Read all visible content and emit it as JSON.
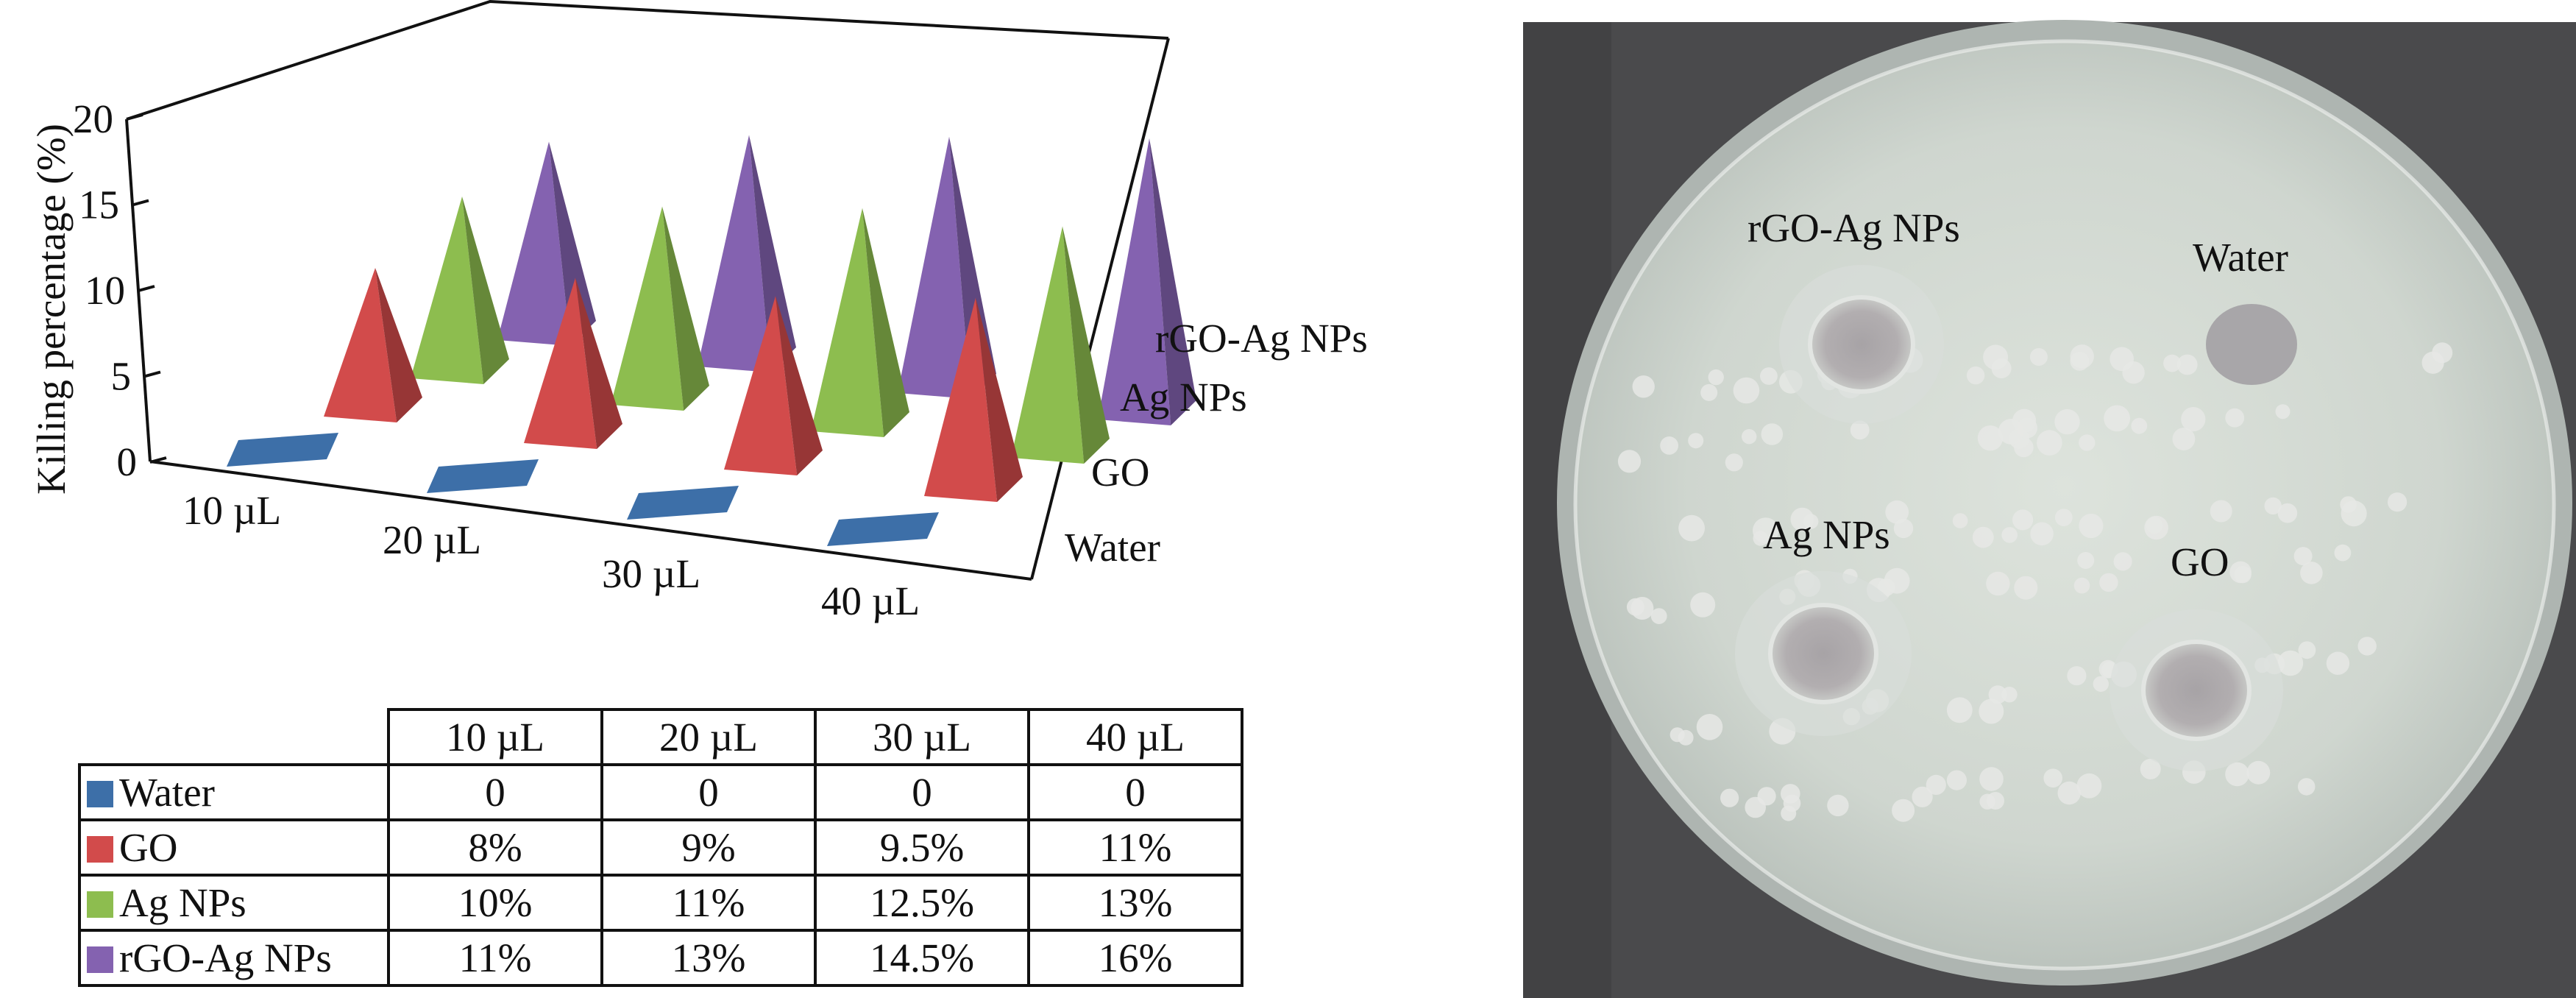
{
  "chart_data": {
    "type": "bar",
    "style": "3d-pyramid",
    "ylabel": "Killing percentage (%)",
    "xlabel": "",
    "ylim": [
      0,
      20
    ],
    "yticks": [
      0,
      5,
      10,
      15,
      20
    ],
    "categories": [
      "10 µL",
      "20 µL",
      "30 µL",
      "40 µL"
    ],
    "series": [
      {
        "name": "Water",
        "color": "#3d6fa8",
        "values": [
          0,
          0,
          0,
          0
        ]
      },
      {
        "name": "GO",
        "color": "#d24b4b",
        "values": [
          8,
          9,
          9.5,
          11
        ]
      },
      {
        "name": "Ag NPs",
        "color": "#8dbd4f",
        "values": [
          10,
          11,
          12.5,
          13
        ]
      },
      {
        "name": "rGO-Ag NPs",
        "color": "#8462b0",
        "values": [
          11,
          13,
          14.5,
          16
        ]
      }
    ],
    "depth_axis_labels": [
      "Water",
      "GO",
      "Ag NPs",
      "rGO-Ag NPs"
    ],
    "grid": false
  },
  "table": {
    "headers": [
      "10 µL",
      "20 µL",
      "30 µL",
      "40 µL"
    ],
    "rows": [
      {
        "label": "Water",
        "color": "#3d6fa8",
        "values": [
          "0",
          "0",
          "0",
          "0"
        ]
      },
      {
        "label": "GO",
        "color": "#d24b4b",
        "values": [
          "8%",
          "9%",
          "9.5%",
          "11%"
        ]
      },
      {
        "label": "Ag NPs",
        "color": "#8dbd4f",
        "values": [
          "10%",
          "11%",
          "12.5%",
          "13%"
        ]
      },
      {
        "label": "rGO-Ag NPs",
        "color": "#8462b0",
        "values": [
          "11%",
          "13%",
          "14.5%",
          "16%"
        ]
      }
    ]
  },
  "photo": {
    "labels": [
      "rGO-Ag NPs",
      "Water",
      "Ag NPs",
      "GO"
    ]
  }
}
